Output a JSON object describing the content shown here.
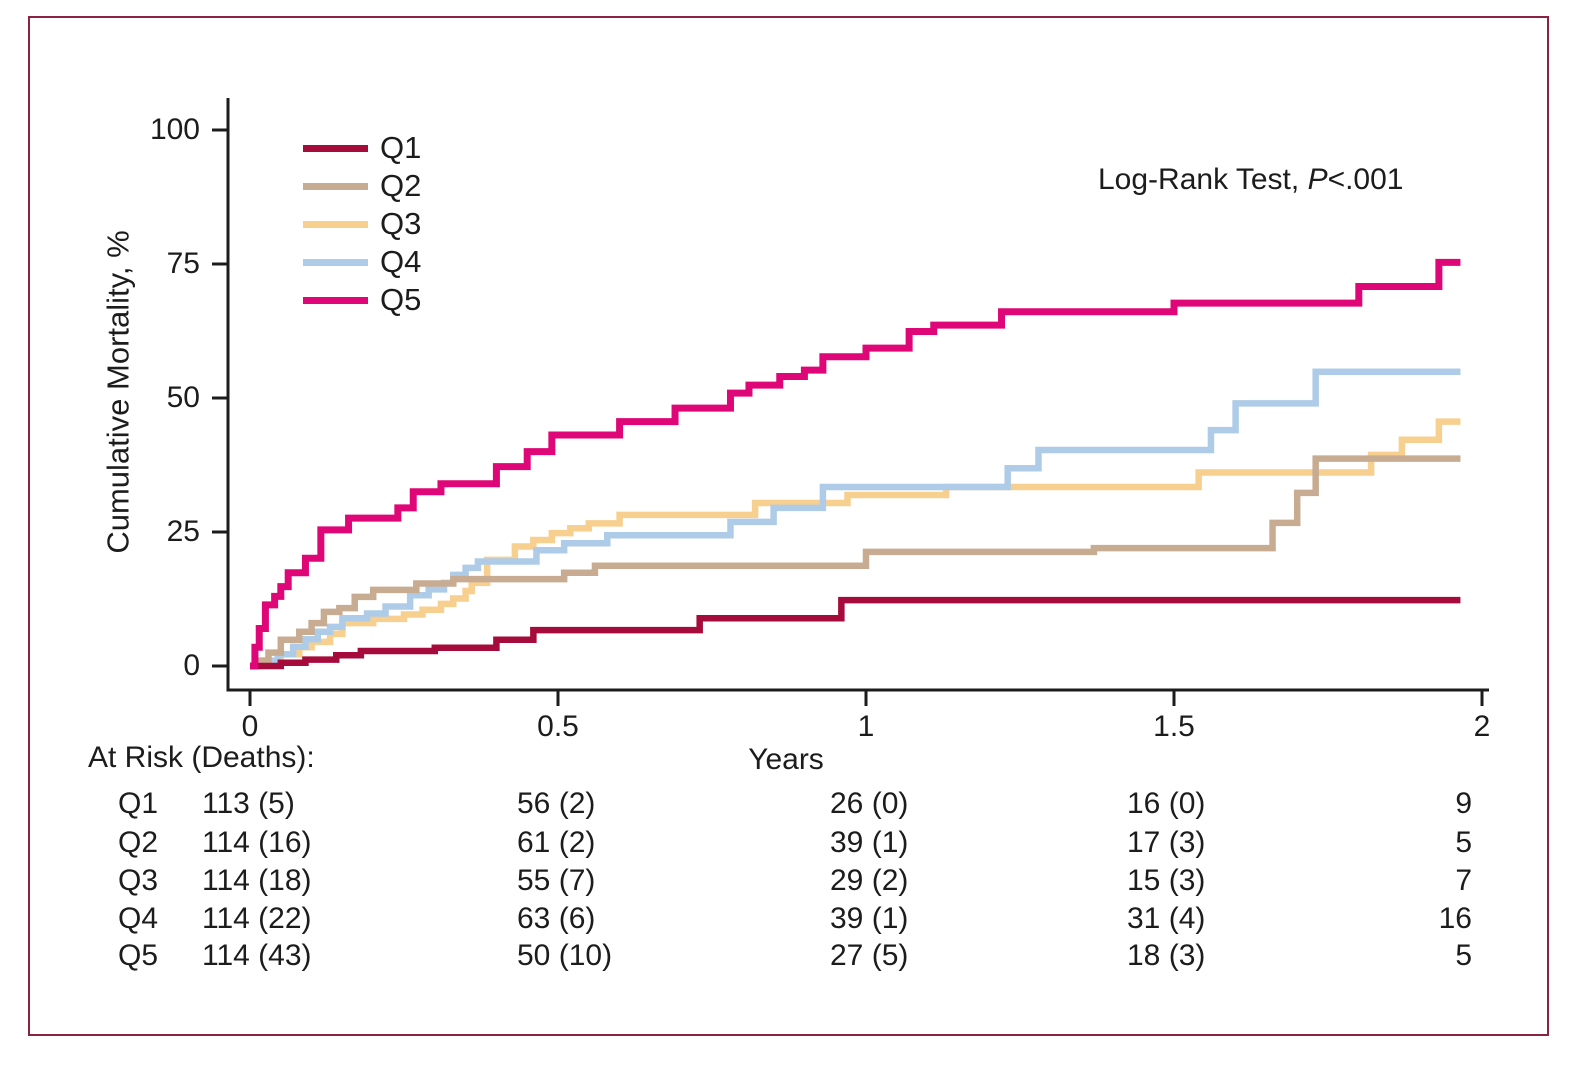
{
  "figure": {
    "border_color": "#8a2342",
    "background": "#ffffff",
    "text_color": "#1c1c1c"
  },
  "annotation": {
    "text_before": "Log-Rank Test, ",
    "p_symbol": "P",
    "text_after": "<.001"
  },
  "chart_data": {
    "type": "line",
    "subtype": "kaplan-meier-cumulative-incidence-steps",
    "title": "",
    "xlabel": "Years",
    "ylabel": "Cumulative Mortality, %",
    "xlim": [
      0,
      2
    ],
    "ylim": [
      0,
      100
    ],
    "xticks": [
      0,
      0.5,
      1,
      1.5,
      2
    ],
    "yticks": [
      0,
      25,
      50,
      75,
      100
    ],
    "xtick_labels": [
      "0",
      "0.5",
      "1",
      "1.5",
      "2"
    ],
    "ytick_labels": [
      "100",
      "75",
      "50",
      "25",
      "0"
    ],
    "grid": false,
    "legend_position": "upper-left-inside",
    "annotation_text": "Log-Rank Test, P<.001",
    "curve_end_x": 1.965,
    "series": [
      {
        "name": "Q1",
        "color": "#a60c3b",
        "points": [
          [
            0,
            0
          ],
          [
            0.05,
            0.6
          ],
          [
            0.09,
            1.2
          ],
          [
            0.14,
            2.0
          ],
          [
            0.18,
            2.8
          ],
          [
            0.3,
            3.4
          ],
          [
            0.4,
            4.9
          ],
          [
            0.46,
            6.7
          ],
          [
            0.73,
            8.9
          ],
          [
            0.96,
            12.3
          ]
        ]
      },
      {
        "name": "Q2",
        "color": "#c8ac92",
        "points": [
          [
            0,
            0
          ],
          [
            0.015,
            1
          ],
          [
            0.03,
            2.5
          ],
          [
            0.05,
            4.9
          ],
          [
            0.08,
            6.4
          ],
          [
            0.1,
            8
          ],
          [
            0.12,
            10.1
          ],
          [
            0.145,
            10.8
          ],
          [
            0.17,
            12.9
          ],
          [
            0.2,
            14.2
          ],
          [
            0.27,
            15.4
          ],
          [
            0.33,
            16.2
          ],
          [
            0.51,
            17.4
          ],
          [
            0.56,
            18.7
          ],
          [
            1.0,
            21.3
          ],
          [
            1.37,
            22
          ],
          [
            1.66,
            26.7
          ],
          [
            1.7,
            32.3
          ],
          [
            1.73,
            38.7
          ]
        ]
      },
      {
        "name": "Q3",
        "color": "#f7cf8e",
        "points": [
          [
            0,
            0
          ],
          [
            0.02,
            1
          ],
          [
            0.05,
            2.2
          ],
          [
            0.08,
            3.5
          ],
          [
            0.1,
            4.5
          ],
          [
            0.13,
            6
          ],
          [
            0.15,
            8
          ],
          [
            0.2,
            8.8
          ],
          [
            0.25,
            9.6
          ],
          [
            0.28,
            10.5
          ],
          [
            0.31,
            11.6
          ],
          [
            0.33,
            12.6
          ],
          [
            0.35,
            14
          ],
          [
            0.36,
            15.5
          ],
          [
            0.385,
            19.8
          ],
          [
            0.43,
            22.3
          ],
          [
            0.46,
            23.5
          ],
          [
            0.49,
            24.8
          ],
          [
            0.52,
            25.7
          ],
          [
            0.55,
            26.6
          ],
          [
            0.6,
            28.2
          ],
          [
            0.82,
            30.4
          ],
          [
            0.97,
            31.9
          ],
          [
            1.13,
            33.4
          ],
          [
            1.54,
            36.1
          ],
          [
            1.82,
            39.4
          ],
          [
            1.87,
            42.2
          ],
          [
            1.93,
            45.6
          ]
        ]
      },
      {
        "name": "Q4",
        "color": "#aecce7",
        "points": [
          [
            0,
            0
          ],
          [
            0.02,
            0.9
          ],
          [
            0.045,
            2.2
          ],
          [
            0.07,
            3.6
          ],
          [
            0.09,
            5
          ],
          [
            0.11,
            6.4
          ],
          [
            0.13,
            7.3
          ],
          [
            0.15,
            8.9
          ],
          [
            0.19,
            9.8
          ],
          [
            0.22,
            11.1
          ],
          [
            0.26,
            13.2
          ],
          [
            0.29,
            14.3
          ],
          [
            0.315,
            15.5
          ],
          [
            0.33,
            17
          ],
          [
            0.35,
            18.3
          ],
          [
            0.37,
            19.5
          ],
          [
            0.465,
            21.6
          ],
          [
            0.51,
            22.9
          ],
          [
            0.58,
            24.4
          ],
          [
            0.78,
            26.9
          ],
          [
            0.85,
            29.5
          ],
          [
            0.93,
            33.4
          ],
          [
            1.23,
            36.9
          ],
          [
            1.28,
            40.3
          ],
          [
            1.56,
            44
          ],
          [
            1.6,
            49
          ],
          [
            1.73,
            54.9
          ]
        ]
      },
      {
        "name": "Q5",
        "color": "#df0677",
        "points": [
          [
            0,
            0
          ],
          [
            0.008,
            3.5
          ],
          [
            0.015,
            7
          ],
          [
            0.025,
            11.4
          ],
          [
            0.04,
            13
          ],
          [
            0.05,
            14.8
          ],
          [
            0.062,
            17.4
          ],
          [
            0.09,
            20.1
          ],
          [
            0.115,
            25.4
          ],
          [
            0.16,
            27.6
          ],
          [
            0.24,
            29.5
          ],
          [
            0.265,
            32.5
          ],
          [
            0.31,
            34
          ],
          [
            0.4,
            37.2
          ],
          [
            0.45,
            40
          ],
          [
            0.49,
            43.1
          ],
          [
            0.6,
            45.6
          ],
          [
            0.69,
            48.1
          ],
          [
            0.78,
            50.9
          ],
          [
            0.81,
            52.4
          ],
          [
            0.86,
            54
          ],
          [
            0.9,
            55.2
          ],
          [
            0.93,
            57.7
          ],
          [
            1.0,
            59.3
          ],
          [
            1.07,
            62.4
          ],
          [
            1.11,
            63.6
          ],
          [
            1.22,
            66.1
          ],
          [
            1.5,
            67.7
          ],
          [
            1.8,
            70.8
          ],
          [
            1.93,
            75.3
          ]
        ]
      }
    ]
  },
  "legend": {
    "items": [
      {
        "label": "Q1"
      },
      {
        "label": "Q2"
      },
      {
        "label": "Q3"
      },
      {
        "label": "Q4"
      },
      {
        "label": "Q5"
      }
    ]
  },
  "risk_table": {
    "header": "At Risk (Deaths):",
    "rows": [
      {
        "label": "Q1",
        "values": [
          "113 (5)",
          "56 (2)",
          "26 (0)",
          "16 (0)",
          "9"
        ]
      },
      {
        "label": "Q2",
        "values": [
          "114 (16)",
          "61 (2)",
          "39 (1)",
          "17 (3)",
          "5"
        ]
      },
      {
        "label": "Q3",
        "values": [
          "114 (18)",
          "55 (7)",
          "29 (2)",
          "15 (3)",
          "7"
        ]
      },
      {
        "label": "Q4",
        "values": [
          "114 (22)",
          "63 (6)",
          "39 (1)",
          "31 (4)",
          "16"
        ]
      },
      {
        "label": "Q5",
        "values": [
          "114 (43)",
          "50 (10)",
          "27 (5)",
          "18 (3)",
          "5"
        ]
      }
    ]
  }
}
